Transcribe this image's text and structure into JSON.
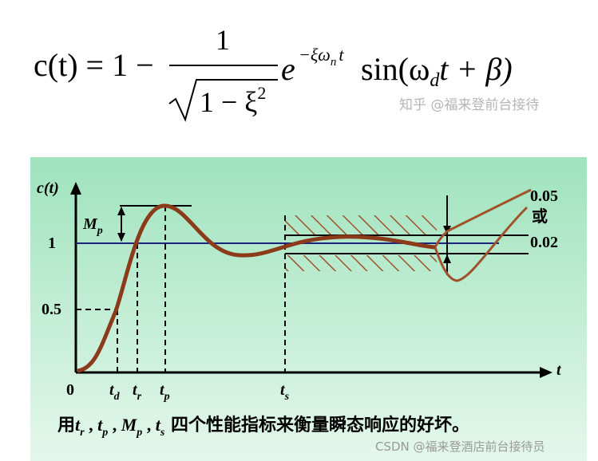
{
  "formula": {
    "lhs": "c(t) = 1 −",
    "numerator": "1",
    "denominator": "1 − ξ",
    "denominator_power": "2",
    "exp_base": "e",
    "exponent": "−ξω",
    "exponent_sub": "n",
    "exponent_tail": "t",
    "sin_head": "sin(ω",
    "sin_sub": "d",
    "sin_tail": "t + β)"
  },
  "watermark_top": "知乎 @福来登前台接待",
  "diagram": {
    "y_axis_label": "c(t)",
    "x_axis_label": "t",
    "level_one": "1",
    "level_half": "0.5",
    "origin": "0",
    "overshoot": {
      "main": "M",
      "sub": "p"
    },
    "delay_time": {
      "main": "t",
      "sub": "d"
    },
    "rise_time": {
      "main": "t",
      "sub": "r"
    },
    "peak_time": {
      "main": "t",
      "sub": "p"
    },
    "settling_time": {
      "main": "t",
      "sub": "s"
    },
    "band_wide": "0.05",
    "band_or": "或",
    "band_narrow": "0.02"
  },
  "caption": {
    "prefix": "用",
    "separator": " , ",
    "items": [
      {
        "main": "t",
        "sub": "r"
      },
      {
        "main": "t",
        "sub": "p"
      },
      {
        "main": "M",
        "sub": "p"
      },
      {
        "main": "t",
        "sub": "s"
      }
    ],
    "suffix": " 四个性能指标来衡量瞬态响应的好坏。"
  },
  "watermark_bottom": "CSDN @福来登酒店前台接待员"
}
